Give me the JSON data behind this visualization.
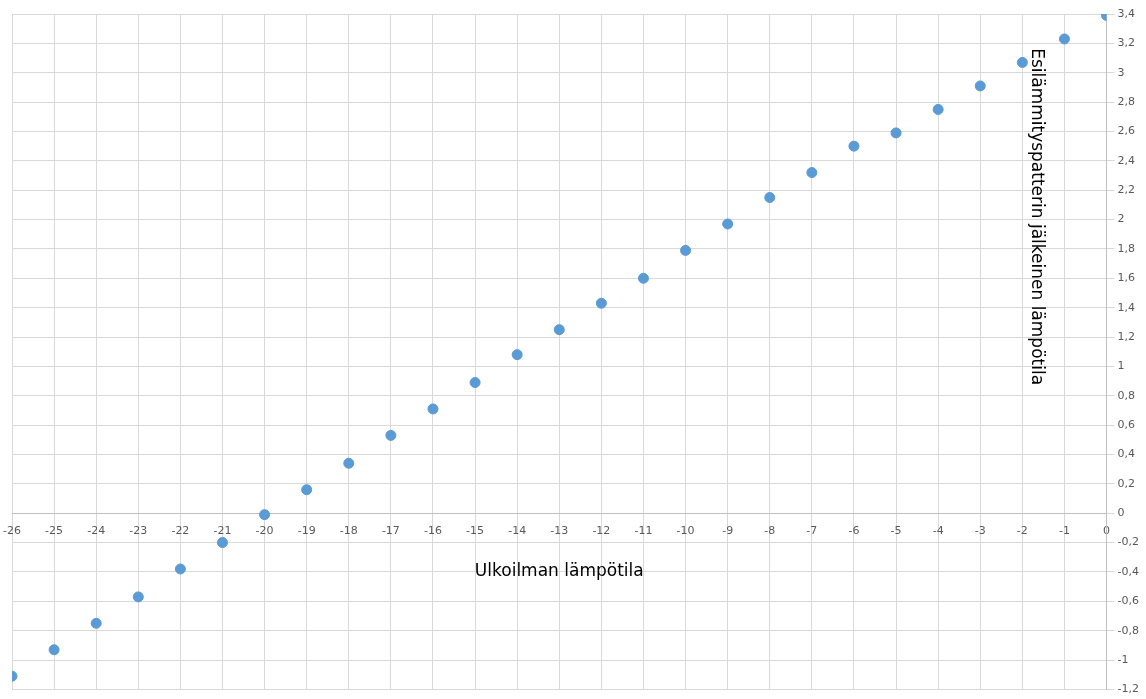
{
  "chart_data": {
    "type": "scatter",
    "xlabel": "Ulkoilman lämpötila",
    "ylabel": "Esilämmityspatterin jälkeinen lämpötila",
    "x": [
      -26,
      -25,
      -24,
      -23,
      -22,
      -21,
      -20,
      -19,
      -18,
      -17,
      -16,
      -15,
      -14,
      -13,
      -12,
      -11,
      -10,
      -9,
      -8,
      -7,
      -6,
      -5,
      -4,
      -3,
      -2,
      -1,
      0
    ],
    "series": [
      {
        "color": "#5b9bd5",
        "values": [
          -1.11,
          -0.93,
          -0.75,
          -0.57,
          -0.38,
          -0.2,
          -0.01,
          0.16,
          0.34,
          0.53,
          0.71,
          0.89,
          1.08,
          1.25,
          1.43,
          1.6,
          1.79,
          1.97,
          2.15,
          2.32,
          2.5,
          2.59,
          2.75,
          2.91,
          3.07,
          3.23,
          3.39
        ]
      }
    ],
    "xlim": [
      -26,
      0
    ],
    "xticks": [
      -26,
      -25,
      -24,
      -23,
      -22,
      -21,
      -20,
      -19,
      -18,
      -17,
      -16,
      -15,
      -14,
      -13,
      -12,
      -11,
      -10,
      -9,
      -8,
      -7,
      -6,
      -5,
      -4,
      -3,
      -2,
      -1,
      0
    ],
    "ylim": [
      -1.2,
      3.4
    ],
    "yticks": [
      {
        "value": -1.2,
        "label": "-1,2"
      },
      {
        "value": -1,
        "label": "-1"
      },
      {
        "value": -0.8,
        "label": "-0,8"
      },
      {
        "value": -0.6,
        "label": "-0,6"
      },
      {
        "value": -0.4,
        "label": "-0,4"
      },
      {
        "value": -0.2,
        "label": "-0,2"
      },
      0,
      {
        "value": 0.2,
        "label": "0,2"
      },
      {
        "value": 0.4,
        "label": "0,4"
      },
      {
        "value": 0.6,
        "label": "0,6"
      },
      {
        "value": 0.8,
        "label": "0,8"
      },
      1,
      {
        "value": 1.2,
        "label": "1,2"
      },
      {
        "value": 1.4,
        "label": "1,4"
      },
      {
        "value": 1.6,
        "label": "1,6"
      },
      {
        "value": 1.8,
        "label": "1,8"
      },
      2,
      {
        "value": 2.2,
        "label": "2,2"
      },
      {
        "value": 2.4,
        "label": "2,4"
      },
      {
        "value": 2.6,
        "label": "2,6"
      },
      {
        "value": 2.8,
        "label": "2,8"
      },
      3,
      {
        "value": 3.2,
        "label": "3,2"
      },
      {
        "value": 3.4,
        "label": "3,4"
      }
    ],
    "grid": true,
    "legend": false,
    "marker": "circle"
  }
}
